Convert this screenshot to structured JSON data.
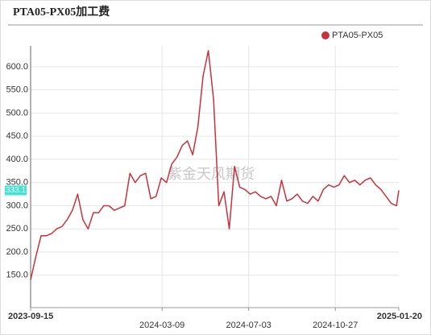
{
  "chart_data": {
    "type": "line",
    "title": "PTA05-PX05加工费",
    "watermark": "紫金天风期货",
    "x": [
      "2023-09-15",
      "2023-09-22",
      "2023-09-29",
      "2023-10-06",
      "2023-10-13",
      "2023-10-20",
      "2023-10-27",
      "2023-11-03",
      "2023-11-10",
      "2023-11-17",
      "2023-11-24",
      "2023-12-01",
      "2023-12-08",
      "2023-12-15",
      "2023-12-22",
      "2023-12-29",
      "2024-01-05",
      "2024-01-12",
      "2024-01-19",
      "2024-01-26",
      "2024-02-02",
      "2024-02-09",
      "2024-02-16",
      "2024-02-23",
      "2024-03-01",
      "2024-03-08",
      "2024-03-15",
      "2024-03-22",
      "2024-03-29",
      "2024-04-05",
      "2024-04-12",
      "2024-04-19",
      "2024-04-26",
      "2024-05-03",
      "2024-05-10",
      "2024-05-17",
      "2024-05-24",
      "2024-05-31",
      "2024-06-07",
      "2024-06-14",
      "2024-06-21",
      "2024-06-28",
      "2024-07-05",
      "2024-07-12",
      "2024-07-19",
      "2024-07-26",
      "2024-08-02",
      "2024-08-09",
      "2024-08-16",
      "2024-08-23",
      "2024-08-30",
      "2024-09-06",
      "2024-09-13",
      "2024-09-20",
      "2024-09-27",
      "2024-10-04",
      "2024-10-11",
      "2024-10-18",
      "2024-10-25",
      "2024-11-01",
      "2024-11-08",
      "2024-11-15",
      "2024-11-22",
      "2024-11-29",
      "2024-12-06",
      "2024-12-13",
      "2024-12-20",
      "2024-12-27",
      "2025-01-03",
      "2025-01-10",
      "2025-01-17",
      "2025-01-20"
    ],
    "series": [
      {
        "name": "PTA05-PX05",
        "color": "#c8323c",
        "values": [
          140,
          190,
          235,
          235,
          240,
          250,
          255,
          270,
          290,
          325,
          270,
          250,
          285,
          285,
          300,
          300,
          290,
          295,
          300,
          370,
          350,
          365,
          370,
          315,
          320,
          360,
          350,
          390,
          405,
          430,
          440,
          410,
          470,
          580,
          635,
          530,
          300,
          330,
          250,
          385,
          340,
          335,
          325,
          330,
          320,
          315,
          320,
          300,
          355,
          310,
          315,
          325,
          310,
          305,
          320,
          310,
          335,
          345,
          340,
          345,
          365,
          350,
          355,
          345,
          355,
          360,
          345,
          335,
          320,
          305,
          300,
          333.1
        ]
      }
    ],
    "xlim": [
      "2023-09-15",
      "2025-01-20"
    ],
    "xticks": [
      "2023-09-15",
      "2024-03-09",
      "2024-07-03",
      "2024-10-27",
      "2025-01-20"
    ],
    "ylim": [
      80,
      645
    ],
    "yticks": [
      {
        "value": 150,
        "label": "150.0"
      },
      {
        "value": 200,
        "label": "200.0"
      },
      {
        "value": 250,
        "label": "250.0"
      },
      {
        "value": 300,
        "label": "300.0"
      },
      {
        "value": 350,
        "label": "350.0"
      },
      {
        "value": 400,
        "label": "400.0"
      },
      {
        "value": 450,
        "label": "450.0"
      },
      {
        "value": 500,
        "label": "500.0"
      },
      {
        "value": 550,
        "label": "550.0"
      },
      {
        "value": 600,
        "label": "600.0"
      }
    ],
    "grid": true,
    "legend": "top-right"
  }
}
